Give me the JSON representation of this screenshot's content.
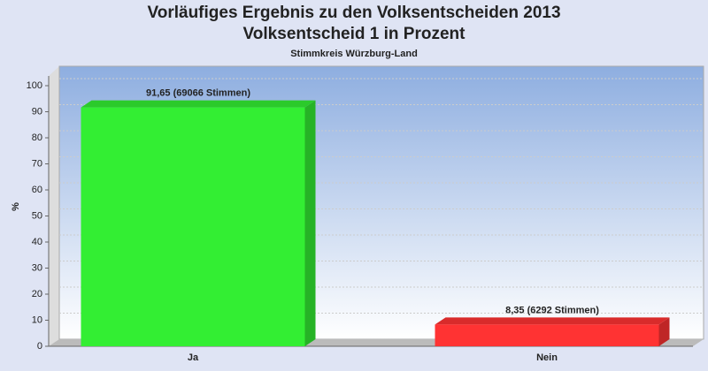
{
  "chart_data": {
    "type": "bar",
    "title": [
      "Vorläufiges Ergebnis zu den Volksentscheiden 2013",
      "Volksentscheid 1 in Prozent"
    ],
    "subtitle": "Stimmkreis Würzburg-Land",
    "ylabel": "%",
    "categories": [
      "Ja",
      "Nein"
    ],
    "values": [
      91.65,
      8.35
    ],
    "value_labels": [
      "91,65 (69066 Stimmen)",
      "8,35 (6292 Stimmen)"
    ],
    "colors": [
      "#33ee33",
      "#ff3333"
    ],
    "ylim": [
      0,
      100
    ],
    "yticks": [
      0,
      10,
      20,
      30,
      40,
      50,
      60,
      70,
      80,
      90,
      100
    ],
    "grid": true
  }
}
